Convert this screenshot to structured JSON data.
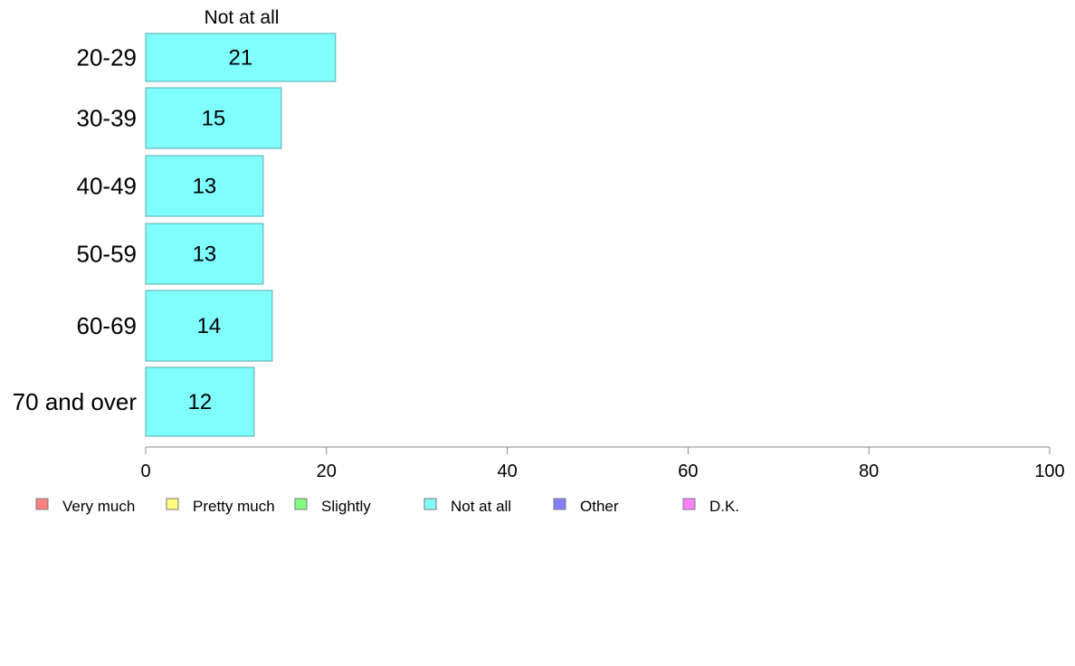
{
  "chart_data": {
    "type": "bar",
    "orientation": "horizontal",
    "series_title": "Not at all",
    "categories": [
      "20-29",
      "30-39",
      "40-49",
      "50-59",
      "60-69",
      "70 and over"
    ],
    "series": [
      {
        "name": "Not at all",
        "values": [
          21,
          15,
          13,
          13,
          14,
          12
        ],
        "color": "#80ffff"
      }
    ],
    "data_labels": [
      "21",
      "15",
      "13",
      "13",
      "14",
      "12"
    ],
    "xlim": [
      0,
      100
    ],
    "xticks": [
      0,
      20,
      40,
      60,
      80,
      100
    ],
    "grid": false,
    "legend": {
      "placement": "bottom",
      "items": [
        {
          "label": "Very much",
          "color": "#ff8080"
        },
        {
          "label": "Pretty much",
          "color": "#ffff80"
        },
        {
          "label": "Slightly",
          "color": "#80ff80"
        },
        {
          "label": "Not at all",
          "color": "#80ffff"
        },
        {
          "label": "Other",
          "color": "#8080ff"
        },
        {
          "label": "D.K.",
          "color": "#ff80ff"
        }
      ]
    }
  }
}
